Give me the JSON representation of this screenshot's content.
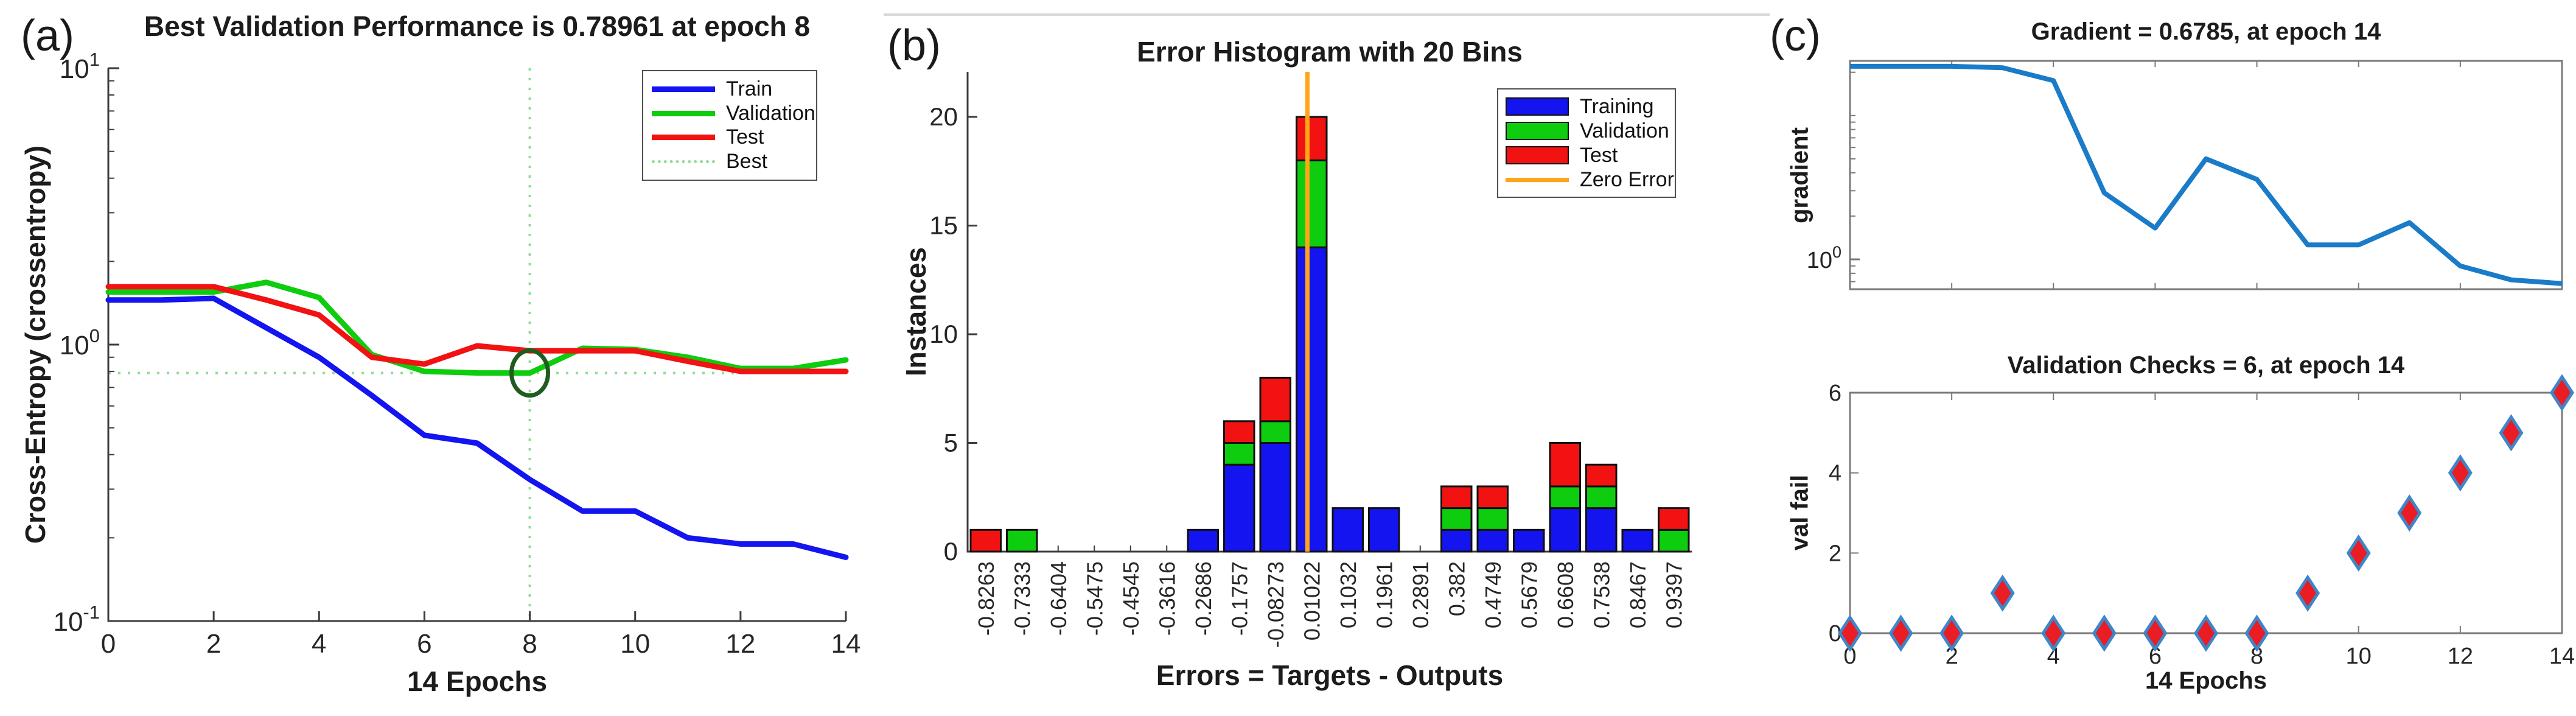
{
  "figure": {
    "panel_labels": {
      "a": "(a)",
      "b": "(b)",
      "c": "(c)"
    },
    "background_color": "#ffffff",
    "axis_color": "#3c3c3c",
    "box_axis_color": "#7a7a7a"
  },
  "chart_data": [
    {
      "id": "best-validation-performance",
      "type": "line",
      "title": "Best Validation Performance is 0.78961 at epoch 8",
      "xlabel": "14 Epochs",
      "ylabel": "Cross-Entropy  (crossentropy)",
      "yscale": "log",
      "ylim": [
        0.1,
        10
      ],
      "xlim": [
        0,
        14
      ],
      "x_ticks": [
        0,
        2,
        4,
        6,
        8,
        10,
        12,
        14
      ],
      "y_tick_labels": [
        {
          "base": "10",
          "exp": "1",
          "value": 10
        },
        {
          "base": "10",
          "exp": "0",
          "value": 1
        },
        {
          "base": "10",
          "exp": "-1",
          "value": 0.1
        }
      ],
      "x": [
        0,
        1,
        2,
        3,
        4,
        5,
        6,
        7,
        8,
        9,
        10,
        11,
        12,
        13,
        14
      ],
      "series": [
        {
          "name": "Train",
          "color": "#1414f0",
          "values": [
            1.45,
            1.45,
            1.47,
            1.15,
            0.9,
            0.655,
            0.47,
            0.44,
            0.325,
            0.25,
            0.25,
            0.2,
            0.19,
            0.19,
            0.17
          ]
        },
        {
          "name": "Validation",
          "color": "#0ecc0e",
          "values": [
            1.55,
            1.55,
            1.55,
            1.68,
            1.48,
            0.92,
            0.8,
            0.79,
            0.789,
            0.97,
            0.96,
            0.9,
            0.82,
            0.82,
            0.88
          ]
        },
        {
          "name": "Test",
          "color": "#f21212",
          "values": [
            1.62,
            1.62,
            1.62,
            1.45,
            1.28,
            0.9,
            0.85,
            0.99,
            0.95,
            0.95,
            0.95,
            0.87,
            0.8,
            0.8,
            0.8
          ]
        }
      ],
      "best": {
        "label": "Best",
        "epoch": 8,
        "value": 0.78961,
        "line_color": "#93dc93",
        "circle_color": "#1f5c1f"
      },
      "legend_position": "top-right",
      "grid": false
    },
    {
      "id": "error-histogram",
      "type": "bar-stacked",
      "title": "Error Histogram with 20 Bins",
      "xlabel": "Errors = Targets - Outputs",
      "ylabel": "Instances",
      "ylim": [
        0,
        22
      ],
      "y_ticks": [
        0,
        5,
        10,
        15,
        20
      ],
      "bin_labels": [
        "-0.8263",
        "-0.7333",
        "-0.6404",
        "-0.5475",
        "-0.4545",
        "-0.3616",
        "-0.2686",
        "-0.1757",
        "-0.08273",
        "0.01022",
        "0.1032",
        "0.1961",
        "0.2891",
        "0.382",
        "0.4749",
        "0.5679",
        "0.6608",
        "0.7538",
        "0.8467",
        "0.9397"
      ],
      "bin_centers": [
        -0.8263,
        -0.7333,
        -0.6404,
        -0.5475,
        -0.4545,
        -0.3616,
        -0.2686,
        -0.1757,
        -0.08273,
        0.01022,
        0.1032,
        0.1961,
        0.2891,
        0.382,
        0.4749,
        0.5679,
        0.6608,
        0.7538,
        0.8467,
        0.9397
      ],
      "series": [
        {
          "name": "Training",
          "color": "#1414f0",
          "values": [
            0,
            0,
            0,
            0,
            0,
            0,
            1,
            4,
            5,
            14,
            2,
            2,
            0,
            1,
            1,
            1,
            2,
            2,
            1,
            0
          ]
        },
        {
          "name": "Validation",
          "color": "#0ecc0e",
          "values": [
            0,
            1,
            0,
            0,
            0,
            0,
            0,
            1,
            1,
            4,
            0,
            0,
            0,
            1,
            1,
            0,
            1,
            1,
            0,
            1
          ]
        },
        {
          "name": "Test",
          "color": "#f21212",
          "values": [
            1,
            0,
            0,
            0,
            0,
            0,
            0,
            1,
            2,
            2,
            0,
            0,
            0,
            1,
            1,
            0,
            2,
            1,
            0,
            1
          ]
        }
      ],
      "zero_error": {
        "label": "Zero Error",
        "color": "#ffa519",
        "value": 0
      },
      "legend_position": "top-right",
      "grid": false
    },
    {
      "id": "gradient",
      "type": "line",
      "title": "Gradient = 0.6785, at epoch 14",
      "ylabel": "gradient",
      "yscale": "log",
      "ylim": [
        0.62,
        24
      ],
      "xlim": [
        0,
        14
      ],
      "x_ticks": [
        2,
        4,
        6,
        8,
        10,
        12
      ],
      "y_tick_labels": [
        {
          "base": "10",
          "exp": "0",
          "value": 1
        }
      ],
      "x": [
        0,
        1,
        2,
        3,
        4,
        5,
        6,
        7,
        8,
        9,
        10,
        11,
        12,
        13,
        14
      ],
      "series": [
        {
          "name": "gradient",
          "color": "#1a7bc9",
          "values": [
            22,
            22,
            22,
            21.5,
            17.5,
            2.9,
            1.65,
            5.0,
            3.6,
            1.26,
            1.26,
            1.8,
            0.9,
            0.72,
            0.6785
          ]
        }
      ],
      "grid": false
    },
    {
      "id": "validation-checks",
      "type": "scatter",
      "title": "Validation Checks = 6, at epoch 14",
      "xlabel": "14 Epochs",
      "ylabel": "val fail",
      "ylim": [
        0,
        6
      ],
      "xlim": [
        0,
        14
      ],
      "x_ticks": [
        0,
        2,
        4,
        6,
        8,
        10,
        12,
        14
      ],
      "y_ticks": [
        0,
        2,
        4,
        6
      ],
      "x": [
        0,
        1,
        2,
        3,
        4,
        5,
        6,
        7,
        8,
        9,
        10,
        11,
        12,
        13,
        14
      ],
      "values": [
        0,
        0,
        0,
        1,
        0,
        0,
        0,
        0,
        0,
        1,
        2,
        3,
        4,
        5,
        6
      ],
      "marker": {
        "shape": "diamond",
        "fill": "#ea1c24",
        "edge": "#3e86c8"
      },
      "grid": false
    }
  ]
}
